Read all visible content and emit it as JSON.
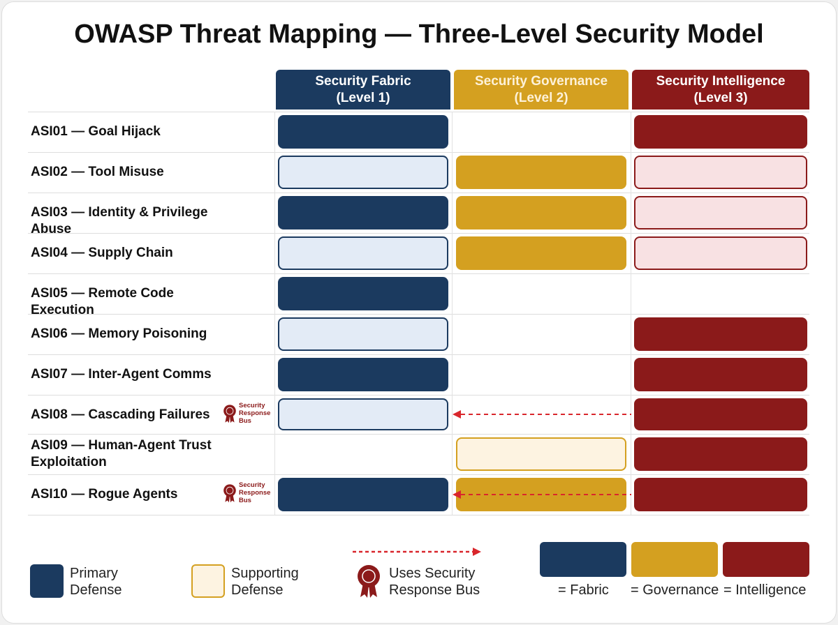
{
  "title": "OWASP Threat Mapping — Three-Level Security Model",
  "colors": {
    "fabric": "#1b3a5f",
    "governance": "#d4a020",
    "intelligence": "#8b1a1a",
    "fabric_light": "#e3ebf6",
    "governance_light": "#fdf3e1",
    "intelligence_light": "#f8e1e3",
    "arrow": "#d9262c"
  },
  "columns": [
    {
      "key": "fabric",
      "line1": "Security Fabric",
      "line2": "(Level 1)"
    },
    {
      "key": "governance",
      "line1": "Security Governance",
      "line2": "(Level 2)"
    },
    {
      "key": "intelligence",
      "line1": "Security Intelligence",
      "line2": "(Level 3)"
    }
  ],
  "rows": [
    {
      "label": "ASI01 — Goal Hijack",
      "cells": [
        "primary",
        "none",
        "primary"
      ]
    },
    {
      "label": "ASI02 — Tool Misuse",
      "cells": [
        "supporting",
        "primary",
        "supporting"
      ]
    },
    {
      "label": "ASI03 — Identity & Privilege Abuse",
      "cells": [
        "primary",
        "primary",
        "supporting"
      ]
    },
    {
      "label": "ASI04 — Supply Chain",
      "cells": [
        "supporting",
        "primary",
        "supporting"
      ]
    },
    {
      "label": "ASI05 — Remote Code Execution",
      "cells": [
        "primary",
        "none",
        "none"
      ]
    },
    {
      "label": "ASI06 — Memory Poisoning",
      "cells": [
        "supporting",
        "none",
        "primary"
      ]
    },
    {
      "label": "ASI07 — Inter-Agent Comms",
      "cells": [
        "primary",
        "none",
        "primary"
      ]
    },
    {
      "label": "ASI08 — Cascading Failures",
      "cells": [
        "supporting",
        "none",
        "primary"
      ],
      "badge": "Security Response Bus",
      "arrow": true
    },
    {
      "label": "ASI09 — Human-Agent Trust Exploitation",
      "cells": [
        "none",
        "supporting",
        "primary"
      ]
    },
    {
      "label": "ASI10 — Rogue Agents",
      "cells": [
        "primary",
        "primary",
        "primary"
      ],
      "badge": "Security Response Bus",
      "arrow": true
    }
  ],
  "badge_lines": [
    "Security",
    "Response",
    "Bus"
  ],
  "legend": {
    "primary": [
      "Primary",
      "Defense"
    ],
    "supporting": [
      "Supporting",
      "Defense"
    ],
    "bus": [
      "Uses Security",
      "Response Bus"
    ],
    "fabric": "= Fabric",
    "governance": "= Governance",
    "intelligence": "= Intelligence"
  }
}
